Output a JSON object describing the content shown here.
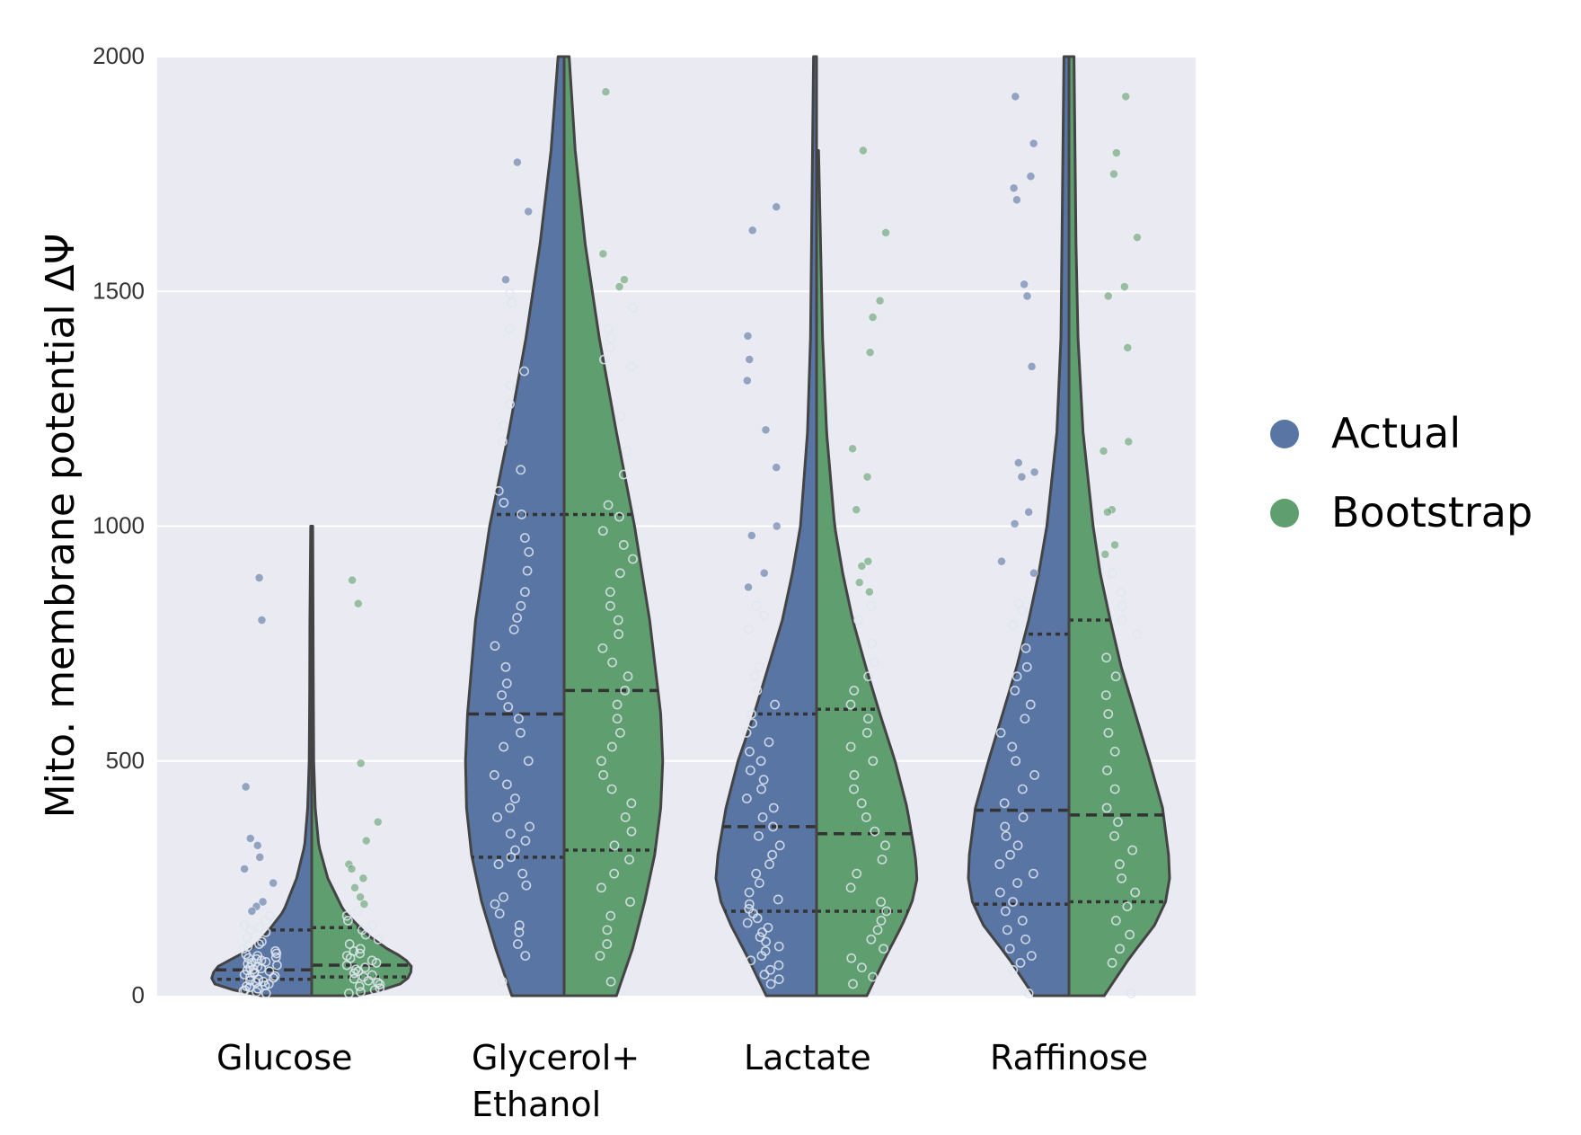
{
  "chart_data": {
    "type": "violin",
    "title": "",
    "xlabel": "",
    "ylabel": "Mito. membrane potential ΔΨ",
    "ylim": [
      0,
      2000
    ],
    "yticks": [
      0,
      500,
      1000,
      1500,
      2000
    ],
    "grid": true,
    "legend_position": "right",
    "categories": [
      {
        "label": [
          "Glucose"
        ]
      },
      {
        "label": [
          "Glycerol+",
          "Ethanol"
        ]
      },
      {
        "label": [
          "Lactate"
        ]
      },
      {
        "label": [
          "Raffinose"
        ]
      }
    ],
    "series": [
      {
        "name": "Actual",
        "color": "#5975a4",
        "quartiles": [
          [
            35,
            55,
            140
          ],
          [
            295,
            600,
            1025
          ],
          [
            180,
            360,
            600
          ],
          [
            195,
            395,
            770
          ]
        ],
        "max": [
          1000,
          2000,
          2000,
          2000
        ],
        "outline": [
          [
            [
              0,
              0.5
            ],
            [
              20,
              0.95
            ],
            [
              40,
              1.0
            ],
            [
              60,
              0.95
            ],
            [
              80,
              0.78
            ],
            [
              100,
              0.6
            ],
            [
              130,
              0.46
            ],
            [
              180,
              0.28
            ],
            [
              250,
              0.15
            ],
            [
              320,
              0.07
            ],
            [
              400,
              0.04
            ],
            [
              500,
              0.025
            ],
            [
              650,
              0.02
            ],
            [
              800,
              0.018
            ],
            [
              1000,
              0.01
            ]
          ],
          [
            [
              0,
              0.52
            ],
            [
              100,
              0.68
            ],
            [
              200,
              0.82
            ],
            [
              300,
              0.92
            ],
            [
              400,
              0.97
            ],
            [
              500,
              0.98
            ],
            [
              600,
              0.96
            ],
            [
              800,
              0.88
            ],
            [
              1000,
              0.74
            ],
            [
              1200,
              0.55
            ],
            [
              1400,
              0.38
            ],
            [
              1600,
              0.24
            ],
            [
              1800,
              0.13
            ],
            [
              2000,
              0.06
            ]
          ],
          [
            [
              0,
              0.5
            ],
            [
              80,
              0.68
            ],
            [
              150,
              0.85
            ],
            [
              200,
              0.95
            ],
            [
              250,
              1.0
            ],
            [
              300,
              0.98
            ],
            [
              400,
              0.9
            ],
            [
              500,
              0.78
            ],
            [
              600,
              0.62
            ],
            [
              700,
              0.48
            ],
            [
              800,
              0.34
            ],
            [
              900,
              0.24
            ],
            [
              1000,
              0.16
            ],
            [
              1200,
              0.09
            ],
            [
              1400,
              0.06
            ],
            [
              1600,
              0.05
            ],
            [
              1800,
              0.04
            ],
            [
              2000,
              0.03
            ]
          ],
          [
            [
              0,
              0.35
            ],
            [
              80,
              0.6
            ],
            [
              150,
              0.85
            ],
            [
              200,
              0.96
            ],
            [
              250,
              1.0
            ],
            [
              300,
              0.99
            ],
            [
              400,
              0.93
            ],
            [
              500,
              0.8
            ],
            [
              600,
              0.66
            ],
            [
              700,
              0.52
            ],
            [
              800,
              0.4
            ],
            [
              900,
              0.3
            ],
            [
              1000,
              0.22
            ],
            [
              1200,
              0.12
            ],
            [
              1400,
              0.08
            ],
            [
              1600,
              0.07
            ],
            [
              1800,
              0.06
            ],
            [
              2000,
              0.05
            ]
          ]
        ],
        "points": [
          [
            890,
            800,
            445,
            335,
            320,
            295,
            270,
            240,
            200,
            190,
            180,
            170,
            160,
            150,
            145,
            140,
            135,
            125,
            115,
            110,
            105,
            100,
            95,
            90,
            88,
            85,
            82,
            80,
            78,
            75,
            72,
            70,
            68,
            65,
            62,
            60,
            58,
            56,
            54,
            52,
            50,
            48,
            45,
            42,
            40,
            38,
            35,
            32,
            30,
            28,
            25,
            22,
            20,
            18,
            15,
            12,
            10,
            8,
            5
          ],
          [
            1775,
            1670,
            1525,
            1495,
            1475,
            1420,
            1330,
            1300,
            1260,
            1215,
            1180,
            1120,
            1075,
            1050,
            1025,
            975,
            945,
            905,
            860,
            830,
            805,
            780,
            745,
            700,
            665,
            640,
            615,
            590,
            560,
            530,
            500,
            470,
            450,
            420,
            400,
            380,
            360,
            345,
            330,
            310,
            295,
            280,
            260,
            235,
            210,
            195,
            175,
            150,
            135,
            110,
            85,
            30
          ],
          [
            1680,
            1630,
            1405,
            1355,
            1310,
            1205,
            1125,
            1000,
            980,
            900,
            870,
            830,
            810,
            780,
            700,
            680,
            650,
            620,
            600,
            580,
            560,
            540,
            520,
            500,
            480,
            460,
            440,
            420,
            400,
            380,
            360,
            340,
            320,
            300,
            280,
            260,
            240,
            220,
            205,
            195,
            185,
            175,
            165,
            155,
            145,
            135,
            125,
            115,
            105,
            95,
            85,
            75,
            65,
            55,
            45,
            35,
            25
          ],
          [
            1915,
            1815,
            1745,
            1720,
            1695,
            1515,
            1490,
            1340,
            1135,
            1115,
            1105,
            1030,
            1005,
            925,
            900,
            835,
            820,
            790,
            740,
            700,
            680,
            650,
            620,
            590,
            560,
            530,
            500,
            470,
            440,
            410,
            380,
            360,
            340,
            320,
            300,
            280,
            260,
            240,
            220,
            200,
            180,
            160,
            140,
            120,
            100,
            85,
            70,
            55,
            5
          ]
        ]
      },
      {
        "name": "Bootstrap",
        "color": "#5f9e6e",
        "quartiles": [
          [
            40,
            65,
            145
          ],
          [
            310,
            650,
            1025
          ],
          [
            180,
            345,
            610
          ],
          [
            200,
            385,
            800
          ]
        ],
        "max": [
          1000,
          2000,
          1800,
          2000
        ],
        "outline": [
          [
            [
              0,
              0.45
            ],
            [
              20,
              0.85
            ],
            [
              40,
              0.97
            ],
            [
              60,
              1.0
            ],
            [
              80,
              0.92
            ],
            [
              100,
              0.75
            ],
            [
              130,
              0.55
            ],
            [
              180,
              0.32
            ],
            [
              250,
              0.16
            ],
            [
              320,
              0.07
            ],
            [
              400,
              0.035
            ],
            [
              500,
              0.02
            ],
            [
              700,
              0.015
            ],
            [
              1000,
              0.01
            ]
          ],
          [
            [
              0,
              0.52
            ],
            [
              100,
              0.68
            ],
            [
              200,
              0.8
            ],
            [
              300,
              0.9
            ],
            [
              400,
              0.96
            ],
            [
              500,
              0.98
            ],
            [
              600,
              0.96
            ],
            [
              800,
              0.85
            ],
            [
              1000,
              0.7
            ],
            [
              1200,
              0.52
            ],
            [
              1400,
              0.35
            ],
            [
              1600,
              0.21
            ],
            [
              1800,
              0.11
            ],
            [
              2000,
              0.05
            ]
          ],
          [
            [
              0,
              0.5
            ],
            [
              80,
              0.68
            ],
            [
              150,
              0.85
            ],
            [
              200,
              0.95
            ],
            [
              250,
              1.0
            ],
            [
              300,
              0.98
            ],
            [
              400,
              0.9
            ],
            [
              500,
              0.78
            ],
            [
              600,
              0.63
            ],
            [
              700,
              0.49
            ],
            [
              800,
              0.36
            ],
            [
              900,
              0.26
            ],
            [
              1000,
              0.18
            ],
            [
              1200,
              0.1
            ],
            [
              1400,
              0.06
            ],
            [
              1600,
              0.04
            ],
            [
              1800,
              0.02
            ]
          ],
          [
            [
              0,
              0.35
            ],
            [
              80,
              0.6
            ],
            [
              150,
              0.85
            ],
            [
              200,
              0.96
            ],
            [
              250,
              1.0
            ],
            [
              300,
              0.99
            ],
            [
              400,
              0.93
            ],
            [
              500,
              0.8
            ],
            [
              600,
              0.66
            ],
            [
              700,
              0.52
            ],
            [
              800,
              0.41
            ],
            [
              900,
              0.31
            ],
            [
              1000,
              0.24
            ],
            [
              1200,
              0.14
            ],
            [
              1400,
              0.09
            ],
            [
              1600,
              0.07
            ],
            [
              1800,
              0.06
            ],
            [
              2000,
              0.05
            ]
          ]
        ],
        "points": [
          [
            885,
            835,
            495,
            370,
            330,
            280,
            270,
            250,
            230,
            210,
            195,
            180,
            170,
            160,
            150,
            140,
            130,
            120,
            110,
            100,
            95,
            90,
            85,
            80,
            75,
            70,
            65,
            60,
            56,
            52,
            48,
            44,
            40,
            36,
            32,
            28,
            24,
            20,
            16,
            12,
            8,
            5
          ],
          [
            1925,
            1580,
            1525,
            1510,
            1465,
            1420,
            1400,
            1380,
            1355,
            1340,
            1235,
            1160,
            1110,
            1045,
            1020,
            990,
            960,
            930,
            900,
            860,
            830,
            800,
            770,
            740,
            710,
            680,
            650,
            620,
            590,
            560,
            530,
            500,
            470,
            440,
            410,
            380,
            350,
            320,
            290,
            260,
            230,
            200,
            170,
            140,
            110,
            85,
            30
          ],
          [
            1800,
            1625,
            1480,
            1445,
            1370,
            1165,
            1105,
            1035,
            925,
            915,
            880,
            860,
            830,
            800,
            750,
            710,
            680,
            650,
            620,
            590,
            560,
            530,
            500,
            470,
            440,
            410,
            380,
            350,
            320,
            290,
            260,
            230,
            200,
            180,
            160,
            140,
            120,
            100,
            80,
            60,
            40,
            25
          ],
          [
            1915,
            1795,
            1750,
            1615,
            1510,
            1490,
            1380,
            1180,
            1160,
            1035,
            1030,
            960,
            940,
            900,
            860,
            830,
            800,
            770,
            720,
            680,
            640,
            600,
            560,
            520,
            480,
            440,
            400,
            370,
            340,
            310,
            280,
            250,
            220,
            190,
            160,
            130,
            100,
            70,
            5
          ]
        ]
      }
    ]
  }
}
